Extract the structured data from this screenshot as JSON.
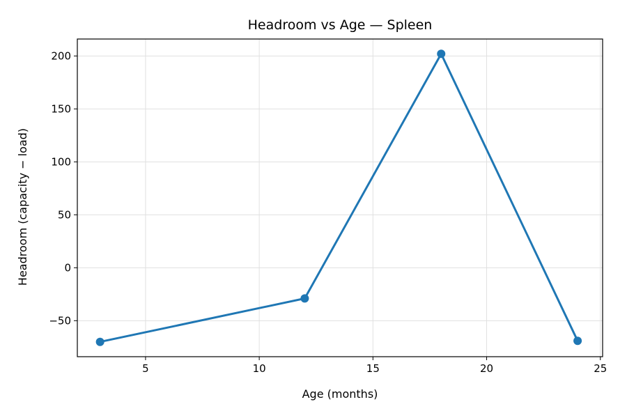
{
  "chart_data": {
    "type": "line",
    "title": "Headroom vs Age — Spleen",
    "xlabel": "Age (months)",
    "ylabel": "Headroom (capacity − load)",
    "xlim": [
      2,
      25.1
    ],
    "ylim": [
      -84,
      216
    ],
    "xticks": [
      5,
      10,
      15,
      20,
      25
    ],
    "xtick_labels": [
      "5",
      "10",
      "15",
      "20",
      "25"
    ],
    "yticks": [
      -50,
      0,
      50,
      100,
      150,
      200
    ],
    "ytick_labels": [
      "−50",
      "0",
      "50",
      "100",
      "150",
      "200"
    ],
    "grid": true,
    "series": [
      {
        "x": [
          3,
          12,
          18,
          24
        ],
        "y": [
          -70,
          -29,
          202,
          -69
        ],
        "color": "#1f77b4"
      }
    ]
  }
}
